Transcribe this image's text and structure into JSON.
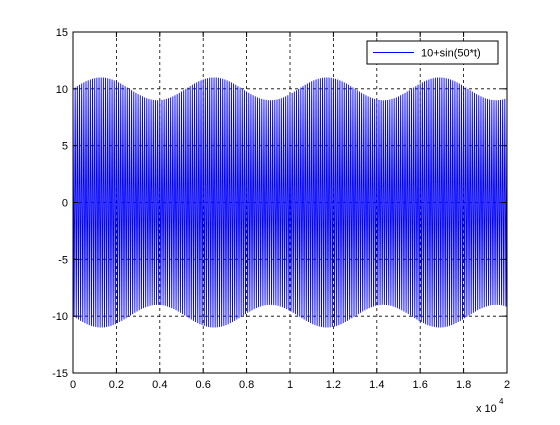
{
  "chart_data": {
    "type": "line",
    "title": "",
    "xlabel": "",
    "ylabel": "",
    "x_multiplier_label": "x 10",
    "x_multiplier_exponent": "4",
    "xlim": [
      0,
      20000
    ],
    "ylim": [
      -15,
      15
    ],
    "xticks": [
      0,
      2000,
      4000,
      6000,
      8000,
      10000,
      12000,
      14000,
      16000,
      18000,
      20000
    ],
    "xtick_labels": [
      "0",
      "0.2",
      "0.4",
      "0.6",
      "0.8",
      "1",
      "1.2",
      "1.4",
      "1.6",
      "1.8",
      "2"
    ],
    "yticks": [
      -15,
      -10,
      -5,
      0,
      5,
      10,
      15
    ],
    "ytick_labels": [
      "-15",
      "-10",
      "-5",
      "0",
      "5",
      "10",
      "15"
    ],
    "grid": true,
    "legend_position": "top-right",
    "series": [
      {
        "name": "10+sin(50*t)",
        "color": "#0000ff",
        "envelope_base": 10,
        "envelope_modulation": 1,
        "envelope_period": 5200,
        "oscillation_period": 100
      }
    ]
  }
}
